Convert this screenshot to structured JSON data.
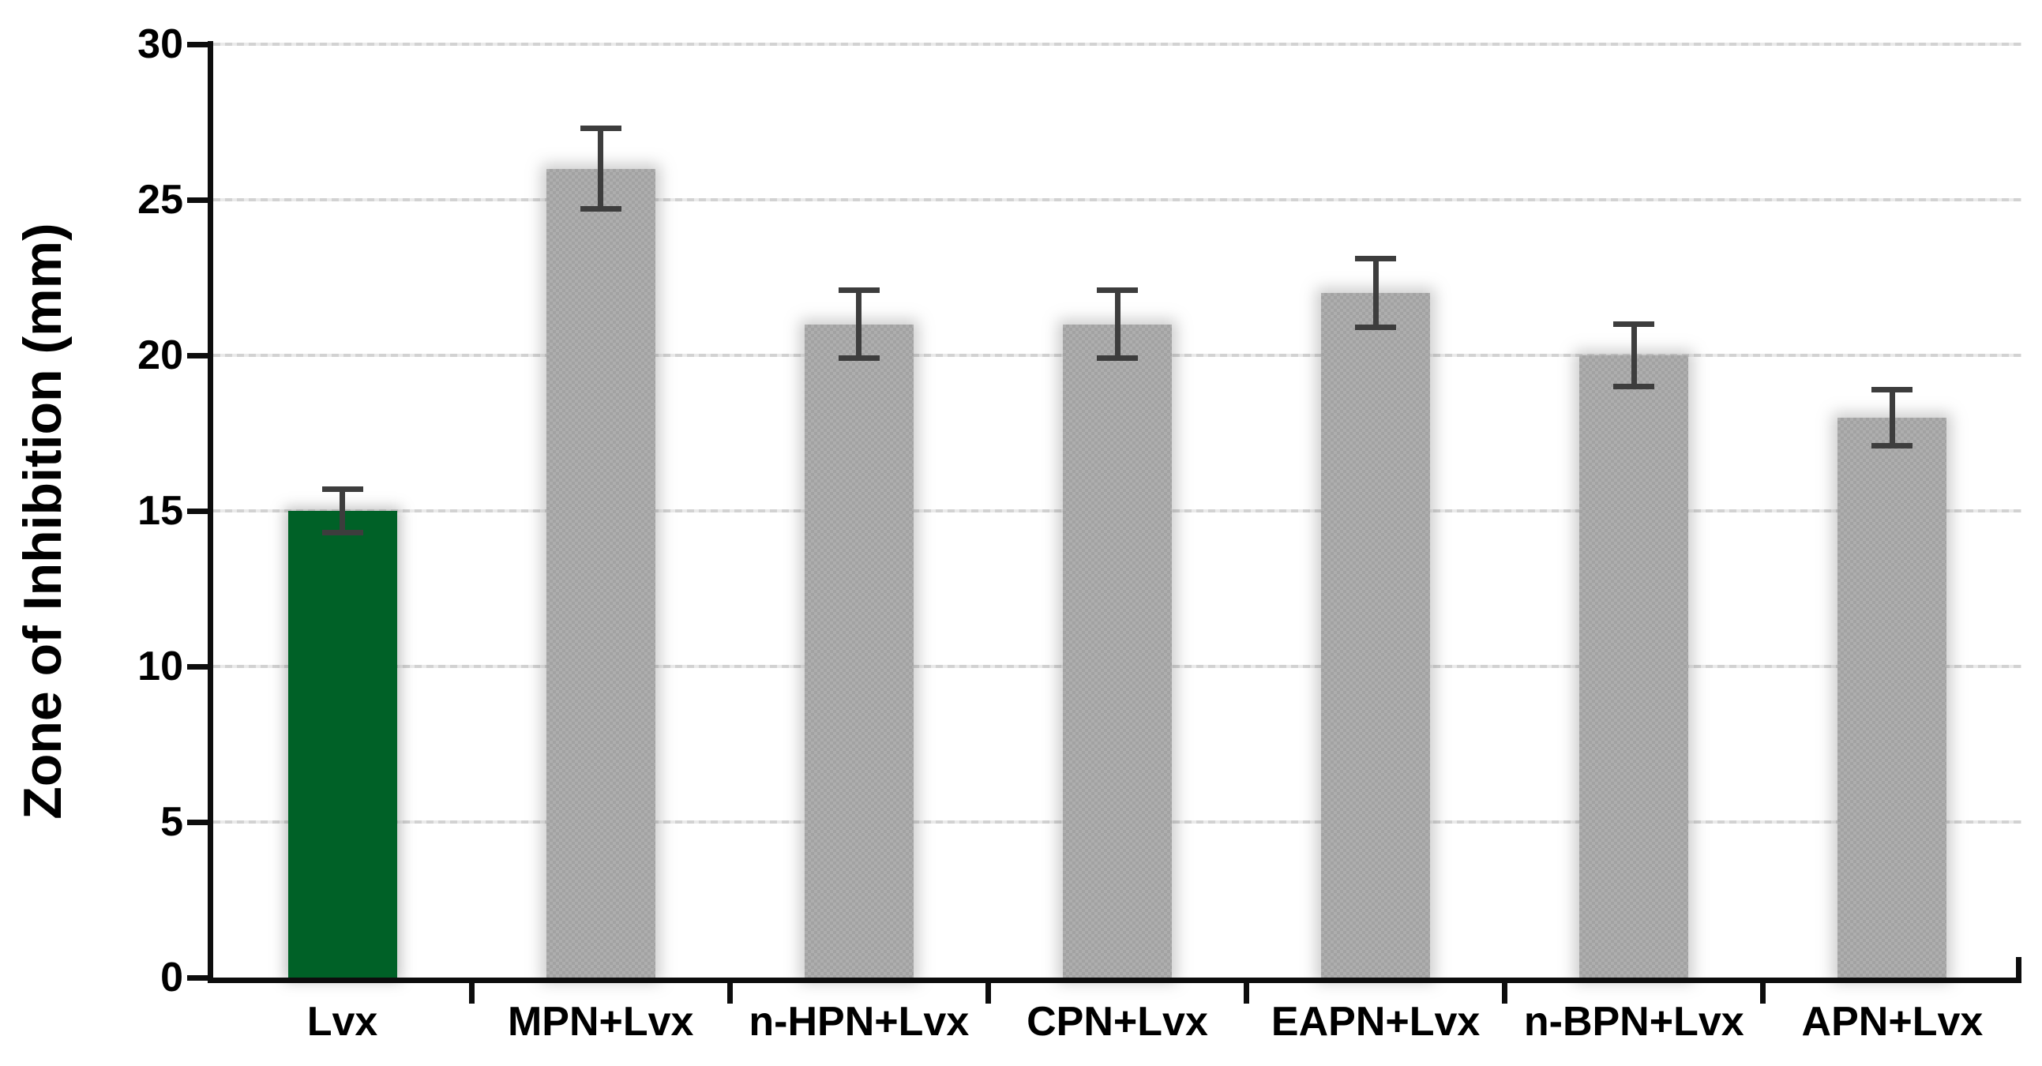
{
  "chart_data": {
    "type": "bar",
    "title": "",
    "xlabel": "",
    "ylabel": "Zone of Inhibition (mm)",
    "ylim": [
      0,
      30
    ],
    "yticks": [
      0,
      5,
      10,
      15,
      20,
      25,
      30
    ],
    "grid": "horizontal-dotted",
    "legend": "none",
    "categories": [
      "Lvx",
      "MPN+Lvx",
      "n-HPN+Lvx",
      "CPN+Lvx",
      "EAPN+Lvx",
      "n-BPN+Lvx",
      "APN+Lvx"
    ],
    "values": [
      15,
      26,
      21,
      21,
      22,
      20,
      18
    ],
    "error_bars": [
      0.7,
      1.3,
      1.1,
      1.1,
      1.1,
      1.0,
      0.9
    ],
    "bar_styles": [
      "highlight",
      "default",
      "default",
      "default",
      "default",
      "default",
      "default"
    ]
  },
  "colors": {
    "highlight_bar": "#006127",
    "default_bar": "#aeaeae",
    "bar_texture_dot": "#a2a2a2",
    "error_bar": "#3d3d3d",
    "axis": "#0d0d0d",
    "gridline": "#d9d9d9",
    "text": "#000000",
    "background": "#ffffff"
  }
}
